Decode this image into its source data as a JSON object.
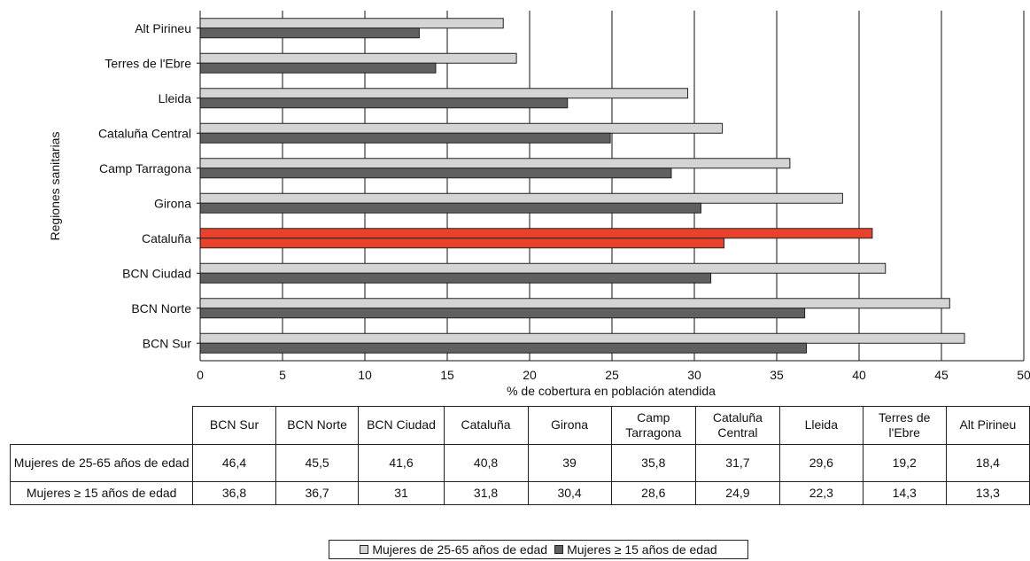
{
  "chart_data": {
    "type": "bar",
    "orientation": "horizontal",
    "ylabel": "Regiones sanitarias",
    "xlabel": "% de cobertura en población atendida",
    "xlim": [
      0,
      50
    ],
    "xticks": [
      0,
      5,
      10,
      15,
      20,
      25,
      30,
      35,
      40,
      45,
      50
    ],
    "grid": "vertical",
    "categories": [
      "Alt Pirineu",
      "Terres de l'Ebre",
      "Lleida",
      "Cataluña Central",
      "Camp Tarragona",
      "Girona",
      "Cataluña",
      "BCN Ciudad",
      "BCN Norte",
      "BCN Sur"
    ],
    "highlight_category": "Cataluña",
    "highlight_color": "#e8412c",
    "series": [
      {
        "name": "Mujeres de 25-65 años de edad",
        "color": "#d4d4d4",
        "values": [
          18.4,
          19.2,
          29.6,
          31.7,
          35.8,
          39,
          40.8,
          41.6,
          45.5,
          46.4
        ]
      },
      {
        "name": "Mujeres ≥ 15 años de edad",
        "color": "#606060",
        "values": [
          13.3,
          14.3,
          22.3,
          24.9,
          28.6,
          30.4,
          31.8,
          31,
          36.7,
          36.8
        ]
      }
    ],
    "legend_placement": "bottom"
  },
  "table": {
    "columns": [
      "BCN Sur",
      "BCN Norte",
      "BCN Ciudad",
      "Cataluña",
      "Girona",
      "Camp Tarragona",
      "Cataluña Central",
      "Lleida",
      "Terres de l'Ebre",
      "Alt Pirineu"
    ],
    "rows": [
      {
        "label": "Mujeres de 25-65 años de edad",
        "values": [
          "46,4",
          "45,5",
          "41,6",
          "40,8",
          "39",
          "35,8",
          "31,7",
          "29,6",
          "19,2",
          "18,4"
        ]
      },
      {
        "label": "Mujeres ≥ 15 años de edad",
        "values": [
          "36,8",
          "36,7",
          "31",
          "31,8",
          "30,4",
          "28,6",
          "24,9",
          "22,3",
          "14,3",
          "13,3"
        ]
      }
    ]
  },
  "legend": {
    "items": [
      "Mujeres de 25-65 años de edad",
      "Mujeres ≥ 15 años de edad"
    ]
  }
}
